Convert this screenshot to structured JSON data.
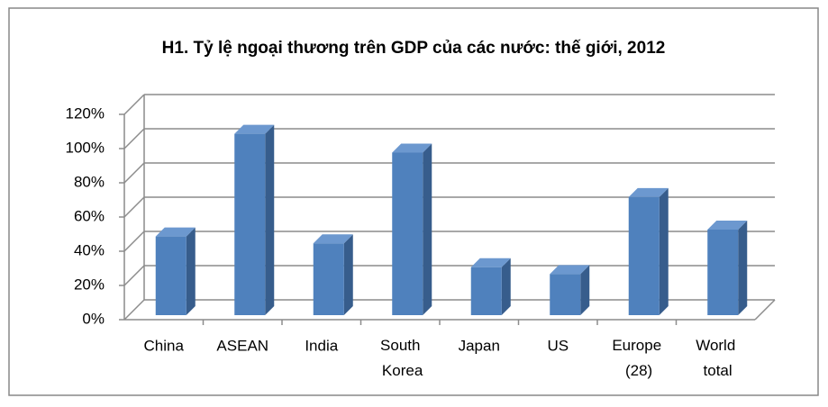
{
  "chart_data": {
    "type": "bar3d",
    "title": "H1. Tỷ lệ ngoại thương trên GDP của các nước: thế giới, 2012",
    "categories": [
      "China",
      "ASEAN",
      "India",
      "South Korea",
      "Japan",
      "US",
      "Europe (28)",
      "World total"
    ],
    "values": [
      46,
      106,
      42,
      95,
      28,
      24,
      69,
      50
    ],
    "color": "#4f81bd",
    "ylim": [
      0,
      120
    ],
    "yticks": [
      {
        "value": 0,
        "label": "0%"
      },
      {
        "value": 20,
        "label": "20%"
      },
      {
        "value": 40,
        "label": "40%"
      },
      {
        "value": 60,
        "label": "60%"
      },
      {
        "value": 80,
        "label": "80%"
      },
      {
        "value": 100,
        "label": "100%"
      },
      {
        "value": 120,
        "label": "120%"
      }
    ],
    "grid": true
  }
}
